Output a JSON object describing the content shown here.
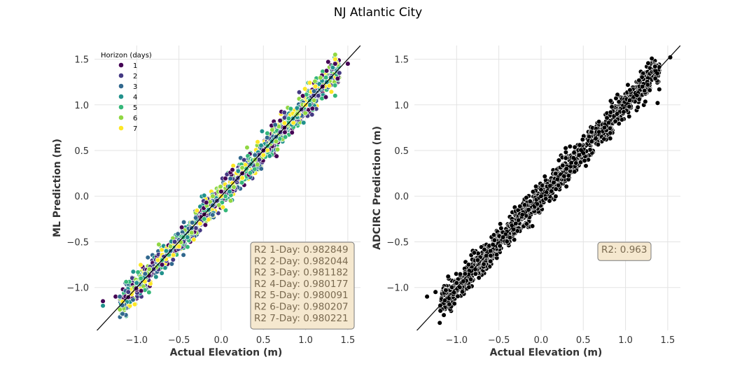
{
  "figure_title": "NJ Atlantic City",
  "chart_data": [
    {
      "type": "scatter",
      "title": "",
      "xlabel": "Actual Elevation (m)",
      "ylabel": "ML Prediction (m)",
      "xlim": [
        -1.5,
        1.65
      ],
      "ylim": [
        -1.47,
        1.65
      ],
      "xticks": [
        -1.0,
        -0.5,
        0.0,
        0.5,
        1.0,
        1.5
      ],
      "yticks": [
        -1.0,
        -0.5,
        0.0,
        0.5,
        1.0,
        1.5
      ],
      "xtick_labels": [
        "−1.0",
        "−0.5",
        "0.0",
        "0.5",
        "1.0",
        "1.5"
      ],
      "ytick_labels": [
        "−1.0",
        "−0.5",
        "0.0",
        "0.5",
        "1.0",
        "1.5"
      ],
      "grid": true,
      "identity_line": true,
      "legend": {
        "title": "Horizon (days)",
        "placement": "top-left",
        "entries": [
          {
            "label": "1",
            "color": "#440154"
          },
          {
            "label": "2",
            "color": "#443983"
          },
          {
            "label": "3",
            "color": "#31688e"
          },
          {
            "label": "4",
            "color": "#21918c"
          },
          {
            "label": "5",
            "color": "#35b779"
          },
          {
            "label": "6",
            "color": "#90d743"
          },
          {
            "label": "7",
            "color": "#fde725"
          }
        ]
      },
      "annotation": [
        "R2 1-Day: 0.982849",
        "R2 2-Day: 0.982044",
        "R2 3-Day: 0.981182",
        "R2 4-Day: 0.980177",
        "R2 5-Day: 0.980091",
        "R2 6-Day: 0.980207",
        "R2 7-Day: 0.980221"
      ],
      "series": [
        {
          "name": "1",
          "x": [
            -1.4,
            -1.25,
            -1.0,
            -0.7,
            -0.45,
            -0.2,
            0.0,
            0.25,
            0.5,
            0.75,
            1.0,
            1.2,
            1.35,
            1.5
          ],
          "y": [
            -1.15,
            -1.1,
            -0.95,
            -0.75,
            -0.45,
            -0.2,
            0.05,
            0.25,
            0.5,
            0.75,
            1.0,
            1.2,
            1.45,
            1.45
          ]
        },
        {
          "name": "2",
          "x": [
            -1.1,
            -0.8,
            -0.55,
            -0.3,
            -0.05,
            0.2,
            0.45,
            0.7,
            0.95,
            1.15,
            1.4
          ],
          "y": [
            -1.05,
            -0.8,
            -0.5,
            -0.35,
            -0.05,
            0.2,
            0.4,
            0.7,
            0.95,
            1.1,
            1.35
          ]
        },
        {
          "name": "3",
          "x": [
            -1.2,
            -0.9,
            -0.6,
            -0.35,
            -0.1,
            0.15,
            0.4,
            0.65,
            0.9,
            1.1,
            1.3
          ],
          "y": [
            -1.1,
            -0.85,
            -0.6,
            -0.35,
            -0.1,
            0.1,
            0.45,
            0.65,
            0.9,
            1.15,
            1.3
          ]
        },
        {
          "name": "4",
          "x": [
            -1.4,
            -1.0,
            -0.65,
            -0.4,
            -0.15,
            0.1,
            0.35,
            0.6,
            0.85,
            1.05,
            1.25
          ],
          "y": [
            -1.2,
            -0.95,
            -0.6,
            -0.45,
            -0.15,
            0.05,
            0.35,
            0.6,
            0.85,
            1.0,
            1.25
          ]
        },
        {
          "name": "5",
          "x": [
            -0.95,
            -0.7,
            -0.45,
            -0.2,
            0.05,
            0.3,
            0.55,
            0.8,
            1.05,
            1.35
          ],
          "y": [
            -0.9,
            -0.7,
            -0.45,
            -0.25,
            0.0,
            0.3,
            0.55,
            0.85,
            1.05,
            1.1
          ]
        },
        {
          "name": "6",
          "x": [
            -0.85,
            -0.6,
            -0.35,
            -0.1,
            0.15,
            0.4,
            0.65,
            0.9,
            1.1,
            1.35
          ],
          "y": [
            -0.8,
            -0.55,
            -0.4,
            0.0,
            0.1,
            0.4,
            0.6,
            0.9,
            1.05,
            1.55
          ]
        },
        {
          "name": "7",
          "x": [
            -0.75,
            -0.5,
            -0.25,
            0.0,
            0.25,
            0.5,
            0.75,
            1.0,
            1.35
          ],
          "y": [
            -0.7,
            -0.55,
            -0.3,
            0.0,
            0.2,
            0.45,
            0.8,
            1.0,
            1.5
          ]
        }
      ]
    },
    {
      "type": "scatter",
      "title": "",
      "xlabel": "Actual Elevation (m)",
      "ylabel": "ADCIRC Prediction (m)",
      "xlim": [
        -1.5,
        1.65
      ],
      "ylim": [
        -1.47,
        1.65
      ],
      "xticks": [
        -1.0,
        -0.5,
        0.0,
        0.5,
        1.0,
        1.5
      ],
      "yticks": [
        -1.0,
        -0.5,
        0.0,
        0.5,
        1.0,
        1.5
      ],
      "xtick_labels": [
        "−1.0",
        "−0.5",
        "0.0",
        "0.5",
        "1.0",
        "1.5"
      ],
      "ytick_labels": [
        "−1.0",
        "−0.5",
        "0.0",
        "0.5",
        "1.0",
        "1.5"
      ],
      "grid": true,
      "identity_line": true,
      "annotation": [
        "R2: 0.963"
      ],
      "series": [
        {
          "name": "ADCIRC",
          "color": "#000000",
          "x": [
            -1.35,
            -1.25,
            -1.1,
            -1.0,
            -0.9,
            -0.75,
            -0.6,
            -0.45,
            -0.3,
            -0.15,
            0.0,
            0.15,
            0.3,
            0.45,
            0.6,
            0.75,
            0.9,
            1.05,
            1.2,
            1.35,
            1.38,
            1.4,
            1.53
          ],
          "y": [
            -1.1,
            -1.05,
            -0.88,
            -0.95,
            -0.85,
            -0.7,
            -0.6,
            -0.45,
            -0.3,
            -0.15,
            0.0,
            0.15,
            0.3,
            0.45,
            0.6,
            0.75,
            0.9,
            1.05,
            1.2,
            1.42,
            1.02,
            1.17,
            1.52
          ]
        }
      ]
    }
  ]
}
